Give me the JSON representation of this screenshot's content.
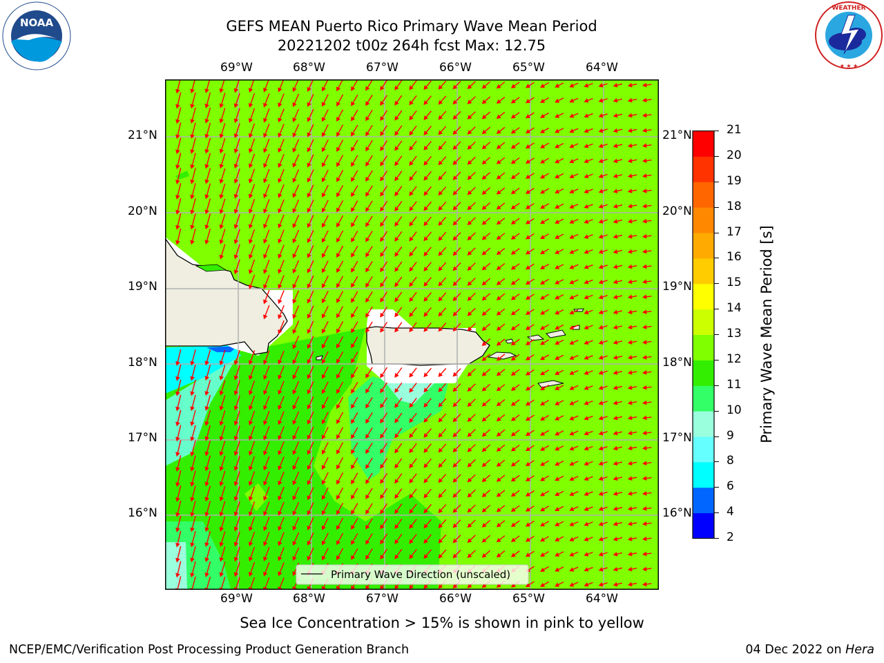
{
  "title": {
    "line1": "GEFS MEAN Puerto Rico Primary Wave Mean Period",
    "line2": "20221202 t00z 264h fcst   Max: 12.75"
  },
  "map": {
    "lon_range": [
      -70,
      -63.25
    ],
    "lat_range": [
      15,
      21.75
    ],
    "lon_ticks": [
      "69°W",
      "68°W",
      "67°W",
      "66°W",
      "65°W",
      "64°W"
    ],
    "lat_ticks": [
      "21°N",
      "20°N",
      "19°N",
      "18°N",
      "17°N",
      "16°N"
    ],
    "gridlines": true,
    "legend": {
      "label": "Primary Wave Direction (unscaled)",
      "placement": "bottom-center"
    },
    "land_color": "#efeee0",
    "ocean_base_color": "#7fff00",
    "arrow_color": "#ff0000"
  },
  "colorbar": {
    "label": "Primary Wave Mean Period [s]",
    "ticks": [
      "2",
      "4",
      "6",
      "8",
      "9",
      "10",
      "11",
      "12",
      "13",
      "14",
      "15",
      "16",
      "17",
      "18",
      "19",
      "20",
      "21"
    ],
    "colors": [
      "#0000ff",
      "#0066ff",
      "#00ffff",
      "#66ffff",
      "#99ffdd",
      "#33ff66",
      "#33ee00",
      "#7fff00",
      "#ccff00",
      "#ffff00",
      "#ffcc00",
      "#ffaa00",
      "#ff8800",
      "#ff6600",
      "#ff3300",
      "#ff0000"
    ]
  },
  "note": "Sea Ice Concentration > 15% is shown in pink to yellow",
  "footer": {
    "left": "NCEP/EMC/Verification Post Processing Product Generation Branch",
    "date": "04 Dec 2022 on ",
    "machine": "Hera"
  },
  "logos": {
    "left": "noaa-logo",
    "right": "nws-logo"
  }
}
